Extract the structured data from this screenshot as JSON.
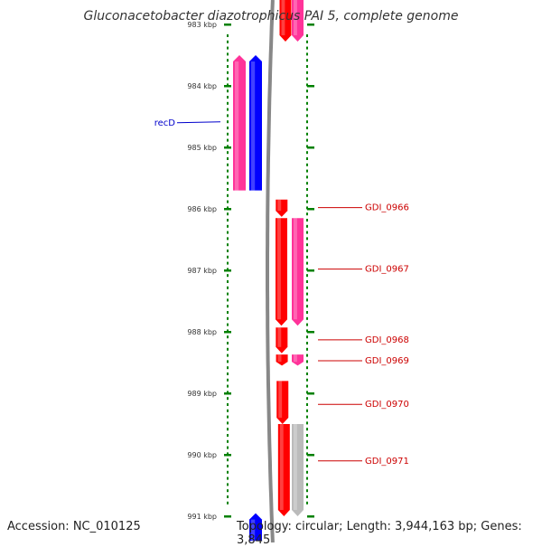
{
  "title": "Gluconacetobacter diazotrophicus PAI 5, complete genome",
  "footer": {
    "accession": "Accession: NC_010125",
    "summary": "Topology: circular; Length: 3,944,163 bp; Genes: 3,845"
  },
  "colors": {
    "forward_cds": "#ff0000",
    "reverse_cds": "#0000ff",
    "pink_feature": "#ff3399",
    "gray_feature": "#bbbbbb",
    "backbone": "#888888",
    "ticks": "#008000",
    "label_reverse": "#0000cc",
    "label_forward": "#cc0000"
  },
  "ruler": {
    "ticks": [
      {
        "kbp": 983,
        "label": "983 kbp"
      },
      {
        "kbp": 984,
        "label": "984 kbp"
      },
      {
        "kbp": 985,
        "label": "985 kbp"
      },
      {
        "kbp": 986,
        "label": "986 kbp"
      },
      {
        "kbp": 987,
        "label": "987 kbp"
      },
      {
        "kbp": 988,
        "label": "988 kbp"
      },
      {
        "kbp": 989,
        "label": "989 kbp"
      },
      {
        "kbp": 990,
        "label": "990 kbp"
      },
      {
        "kbp": 991,
        "label": "991 kbp"
      }
    ]
  },
  "features": [
    {
      "track": "fwd-cds",
      "start": 982.6,
      "end": 983.28,
      "color": "forward_cds"
    },
    {
      "track": "fwd-gene",
      "start": 982.6,
      "end": 983.28,
      "color": "pink_feature"
    },
    {
      "track": "rev-gene",
      "start": 983.5,
      "end": 985.7,
      "color": "pink_feature"
    },
    {
      "track": "rev-cds",
      "start": 983.5,
      "end": 985.7,
      "color": "reverse_cds"
    },
    {
      "track": "fwd-cds",
      "start": 985.85,
      "end": 986.13,
      "color": "forward_cds"
    },
    {
      "track": "fwd-cds",
      "start": 986.15,
      "end": 987.9,
      "color": "forward_cds"
    },
    {
      "track": "fwd-gene",
      "start": 986.15,
      "end": 987.9,
      "color": "pink_feature"
    },
    {
      "track": "fwd-cds",
      "start": 987.93,
      "end": 988.35,
      "color": "forward_cds"
    },
    {
      "track": "fwd-cds",
      "start": 988.37,
      "end": 988.55,
      "color": "forward_cds"
    },
    {
      "track": "fwd-gene",
      "start": 988.37,
      "end": 988.55,
      "color": "pink_feature"
    },
    {
      "track": "fwd-cds",
      "start": 988.8,
      "end": 989.5,
      "color": "forward_cds"
    },
    {
      "track": "fwd-cds",
      "start": 989.5,
      "end": 991.0,
      "color": "forward_cds"
    },
    {
      "track": "fwd-gene",
      "start": 989.5,
      "end": 991.0,
      "color": "gray_feature"
    },
    {
      "track": "rev-cds",
      "start": 990.95,
      "end": 991.4,
      "color": "reverse_cds"
    }
  ],
  "labels": [
    {
      "text": "recD",
      "kbp": 984.6,
      "side": "left",
      "color": "label_reverse"
    },
    {
      "text": "GDI_0966",
      "kbp": 985.98,
      "side": "right",
      "color": "label_forward"
    },
    {
      "text": "GDI_0967",
      "kbp": 986.98,
      "side": "right",
      "color": "label_forward"
    },
    {
      "text": "GDI_0968",
      "kbp": 988.13,
      "side": "right",
      "color": "label_forward"
    },
    {
      "text": "GDI_0969",
      "kbp": 988.47,
      "side": "right",
      "color": "label_forward"
    },
    {
      "text": "GDI_0970",
      "kbp": 989.18,
      "side": "right",
      "color": "label_forward"
    },
    {
      "text": "GDI_0971",
      "kbp": 990.1,
      "side": "right",
      "color": "label_forward"
    }
  ]
}
